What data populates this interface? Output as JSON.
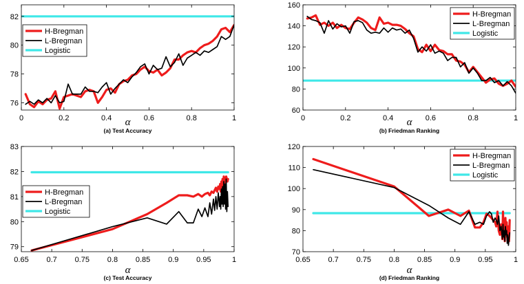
{
  "chart_data": [
    {
      "type": "line",
      "caption": "(a) Test Accuracy",
      "xlabel": "α",
      "ylabel": "",
      "xlim": [
        0,
        1
      ],
      "ylim": [
        75.5,
        82.8
      ],
      "xticks": [
        0,
        0.2,
        0.4,
        0.6,
        0.8,
        1
      ],
      "xtick_labels": [
        "0",
        "0.2",
        "0.4",
        "0.6",
        "0.8",
        "1"
      ],
      "yticks": [
        76,
        78,
        80,
        82
      ],
      "ytick_labels": [
        "76",
        "78",
        "80",
        "82"
      ],
      "legend_position": "upper-left",
      "series": [
        {
          "name": "H-Bregman",
          "color": "#ee1c1c",
          "width": 3.2,
          "x": [
            0.02,
            0.04,
            0.06,
            0.08,
            0.1,
            0.12,
            0.14,
            0.16,
            0.18,
            0.2,
            0.22,
            0.24,
            0.26,
            0.28,
            0.3,
            0.32,
            0.34,
            0.36,
            0.38,
            0.4,
            0.42,
            0.44,
            0.46,
            0.48,
            0.5,
            0.52,
            0.54,
            0.56,
            0.58,
            0.6,
            0.62,
            0.64,
            0.66,
            0.68,
            0.7,
            0.72,
            0.74,
            0.76,
            0.78,
            0.8,
            0.82,
            0.84,
            0.86,
            0.88,
            0.9,
            0.92,
            0.94,
            0.96,
            0.98,
            1.0
          ],
          "y": [
            76.6,
            75.9,
            75.7,
            76.1,
            75.9,
            76.2,
            76.3,
            76.8,
            75.6,
            76.4,
            76.5,
            76.6,
            76.5,
            76.4,
            76.8,
            76.9,
            76.8,
            76.0,
            76.4,
            76.9,
            77.0,
            76.7,
            77.3,
            77.5,
            77.6,
            77.9,
            78.0,
            78.3,
            78.5,
            78.2,
            78.1,
            78.3,
            77.9,
            78.1,
            78.4,
            79.0,
            79.0,
            79.3,
            79.5,
            79.6,
            79.5,
            79.8,
            80.0,
            80.1,
            80.3,
            80.6,
            81.1,
            81.2,
            80.9,
            81.4
          ]
        },
        {
          "name": "L-Bregman",
          "color": "#000000",
          "width": 1.7,
          "x": [
            0.02,
            0.04,
            0.06,
            0.08,
            0.1,
            0.12,
            0.14,
            0.16,
            0.18,
            0.2,
            0.22,
            0.24,
            0.26,
            0.28,
            0.3,
            0.32,
            0.34,
            0.36,
            0.38,
            0.4,
            0.42,
            0.44,
            0.46,
            0.48,
            0.5,
            0.52,
            0.54,
            0.56,
            0.58,
            0.6,
            0.62,
            0.64,
            0.66,
            0.68,
            0.7,
            0.72,
            0.74,
            0.76,
            0.78,
            0.8,
            0.82,
            0.84,
            0.86,
            0.88,
            0.9,
            0.92,
            0.94,
            0.96,
            0.98,
            1.0
          ],
          "y": [
            75.9,
            76.1,
            75.9,
            76.2,
            76.0,
            76.3,
            76.0,
            76.5,
            76.0,
            76.1,
            77.3,
            76.6,
            76.6,
            76.6,
            77.1,
            76.8,
            76.8,
            76.7,
            77.1,
            77.4,
            76.6,
            77.0,
            77.3,
            77.6,
            77.4,
            77.8,
            78.1,
            78.5,
            78.7,
            78.0,
            78.6,
            78.3,
            78.4,
            79.2,
            78.5,
            78.8,
            79.4,
            78.6,
            79.1,
            79.3,
            79.5,
            79.3,
            79.6,
            79.5,
            79.7,
            79.9,
            80.6,
            80.4,
            80.6,
            81.4
          ]
        },
        {
          "name": "Logistic",
          "color": "#3fe8e8",
          "width": 3.2,
          "x": [
            0,
            1
          ],
          "y": [
            82.0,
            82.0
          ]
        }
      ]
    },
    {
      "type": "line",
      "caption": "(b) Friedman Ranking",
      "xlabel": "α",
      "ylabel": "",
      "xlim": [
        0,
        1
      ],
      "ylim": [
        60,
        160
      ],
      "xticks": [
        0,
        0.2,
        0.4,
        0.6,
        0.8,
        1
      ],
      "xtick_labels": [
        "0",
        "0.2",
        "0.4",
        "0.6",
        "0.8",
        "1"
      ],
      "yticks": [
        60,
        80,
        100,
        120,
        140,
        160
      ],
      "ytick_labels": [
        "60",
        "80",
        "100",
        "120",
        "140",
        "160"
      ],
      "legend_position": "upper-right",
      "series": [
        {
          "name": "H-Bregman",
          "color": "#ee1c1c",
          "width": 3.2,
          "x": [
            0.02,
            0.04,
            0.06,
            0.08,
            0.1,
            0.12,
            0.14,
            0.16,
            0.18,
            0.2,
            0.22,
            0.24,
            0.26,
            0.28,
            0.3,
            0.32,
            0.34,
            0.36,
            0.38,
            0.4,
            0.42,
            0.44,
            0.46,
            0.48,
            0.5,
            0.52,
            0.54,
            0.56,
            0.58,
            0.6,
            0.62,
            0.64,
            0.66,
            0.68,
            0.7,
            0.72,
            0.74,
            0.76,
            0.78,
            0.8,
            0.82,
            0.84,
            0.86,
            0.88,
            0.9,
            0.92,
            0.94,
            0.96,
            0.98,
            1.0
          ],
          "y": [
            147,
            148,
            150,
            141,
            143,
            140,
            143,
            138,
            141,
            138,
            137,
            143,
            148,
            146,
            143,
            138,
            136,
            148,
            142,
            143,
            141,
            141,
            140,
            137,
            133,
            130,
            118,
            115,
            122,
            116,
            122,
            117,
            116,
            113,
            113,
            107,
            106,
            103,
            96,
            101,
            96,
            91,
            86,
            89,
            90,
            85,
            83,
            85,
            88,
            82
          ]
        },
        {
          "name": "L-Bregman",
          "color": "#000000",
          "width": 1.7,
          "x": [
            0.02,
            0.04,
            0.06,
            0.08,
            0.1,
            0.12,
            0.14,
            0.16,
            0.18,
            0.2,
            0.22,
            0.24,
            0.26,
            0.28,
            0.3,
            0.32,
            0.34,
            0.36,
            0.38,
            0.4,
            0.42,
            0.44,
            0.46,
            0.48,
            0.5,
            0.52,
            0.54,
            0.56,
            0.58,
            0.6,
            0.62,
            0.64,
            0.66,
            0.68,
            0.7,
            0.72,
            0.74,
            0.76,
            0.78,
            0.8,
            0.82,
            0.84,
            0.86,
            0.88,
            0.9,
            0.92,
            0.94,
            0.96,
            0.98,
            1.0
          ],
          "y": [
            149,
            146,
            145,
            143,
            133,
            145,
            137,
            142,
            139,
            140,
            133,
            144,
            145,
            143,
            136,
            133,
            134,
            133,
            138,
            134,
            138,
            136,
            137,
            133,
            136,
            128,
            115,
            120,
            116,
            122,
            114,
            116,
            114,
            107,
            110,
            110,
            101,
            105,
            95,
            100,
            95,
            88,
            88,
            91,
            86,
            88,
            83,
            87,
            83,
            76
          ]
        },
        {
          "name": "Logistic",
          "color": "#3fe8e8",
          "width": 3.2,
          "x": [
            0,
            1
          ],
          "y": [
            88,
            88
          ]
        }
      ]
    },
    {
      "type": "line",
      "caption": "(c) Test Accuracy",
      "xlabel": "α",
      "ylabel": "",
      "xlim": [
        0.65,
        1
      ],
      "ylim": [
        78.8,
        83
      ],
      "xticks": [
        0.65,
        0.7,
        0.75,
        0.8,
        0.85,
        0.9,
        0.95,
        1
      ],
      "xtick_labels": [
        "0.65",
        "0.7",
        "0.75",
        "0.8",
        "0.85",
        "0.9",
        "0.95",
        "1"
      ],
      "yticks": [
        79,
        80,
        81,
        82,
        83
      ],
      "ytick_labels": [
        "79",
        "80",
        "81",
        "82",
        "83"
      ],
      "legend_position": "center-left",
      "series": [
        {
          "name": "H-Bregman",
          "color": "#ee1c1c",
          "width": 3.2,
          "x": [
            0.667,
            0.8,
            0.857,
            0.889,
            0.909,
            0.923,
            0.933,
            0.941,
            0.947,
            0.952,
            0.957,
            0.96,
            0.963,
            0.966,
            0.968,
            0.97,
            0.972,
            0.974,
            0.976,
            0.977,
            0.978,
            0.979,
            0.98,
            0.981,
            0.982,
            0.983,
            0.984,
            0.985,
            0.986,
            0.987,
            0.988,
            0.989,
            0.99
          ],
          "y": [
            78.85,
            79.7,
            80.3,
            80.75,
            81.05,
            81.05,
            81.0,
            81.1,
            81.0,
            81.1,
            81.15,
            81.05,
            81.2,
            81.15,
            81.25,
            81.35,
            81.2,
            81.4,
            81.3,
            81.5,
            81.2,
            81.6,
            81.3,
            81.7,
            81.4,
            81.8,
            81.5,
            81.75,
            81.6,
            81.8,
            81.7,
            81.6,
            81.7
          ]
        },
        {
          "name": "L-Bregman",
          "color": "#000000",
          "width": 1.7,
          "x": [
            0.667,
            0.8,
            0.857,
            0.889,
            0.909,
            0.923,
            0.933,
            0.941,
            0.947,
            0.952,
            0.957,
            0.96,
            0.963,
            0.966,
            0.968,
            0.97,
            0.972,
            0.974,
            0.976,
            0.977,
            0.978,
            0.979,
            0.98,
            0.981,
            0.982,
            0.983,
            0.984,
            0.985,
            0.986,
            0.987,
            0.988,
            0.989,
            0.99
          ],
          "y": [
            78.85,
            79.8,
            80.15,
            79.9,
            80.4,
            79.95,
            79.95,
            80.5,
            80.2,
            80.55,
            80.2,
            80.75,
            80.3,
            80.9,
            80.45,
            81.0,
            80.5,
            81.15,
            80.6,
            81.0,
            80.5,
            81.3,
            80.7,
            81.4,
            80.6,
            81.6,
            80.7,
            81.5,
            80.5,
            81.7,
            80.4,
            81.2,
            80.6
          ]
        },
        {
          "name": "Logistic",
          "color": "#3fe8e8",
          "width": 3.2,
          "x": [
            0.667,
            0.99
          ],
          "y": [
            81.97,
            81.97
          ]
        }
      ]
    },
    {
      "type": "line",
      "caption": "(d) Friedman Ranking",
      "xlabel": "α",
      "ylabel": "",
      "xlim": [
        0.65,
        1
      ],
      "ylim": [
        70,
        120
      ],
      "xticks": [
        0.65,
        0.7,
        0.75,
        0.8,
        0.85,
        0.9,
        0.95,
        1
      ],
      "xtick_labels": [
        "0.65",
        "0.7",
        "0.75",
        "0.8",
        "0.85",
        "0.9",
        "0.95",
        "1"
      ],
      "yticks": [
        70,
        80,
        90,
        100,
        110,
        120
      ],
      "ytick_labels": [
        "70",
        "80",
        "90",
        "100",
        "110",
        "120"
      ],
      "legend_position": "upper-right",
      "series": [
        {
          "name": "H-Bregman",
          "color": "#ee1c1c",
          "width": 3.2,
          "x": [
            0.667,
            0.8,
            0.857,
            0.889,
            0.909,
            0.923,
            0.933,
            0.941,
            0.947,
            0.952,
            0.957,
            0.96,
            0.963,
            0.966,
            0.968,
            0.97,
            0.972,
            0.974,
            0.976,
            0.977,
            0.978,
            0.979,
            0.98,
            0.981,
            0.982,
            0.983,
            0.984,
            0.985,
            0.986,
            0.987,
            0.988,
            0.989,
            0.99
          ],
          "y": [
            114,
            101,
            87,
            90,
            87,
            89.5,
            81.5,
            81.5,
            84,
            88,
            87,
            86,
            85,
            84,
            82,
            89,
            80,
            78,
            83,
            80,
            76,
            89,
            78,
            82,
            75,
            86,
            79,
            84,
            77,
            80,
            82,
            75,
            85
          ]
        },
        {
          "name": "L-Bregman",
          "color": "#000000",
          "width": 1.7,
          "x": [
            0.667,
            0.8,
            0.857,
            0.889,
            0.909,
            0.923,
            0.933,
            0.941,
            0.947,
            0.952,
            0.957,
            0.96,
            0.963,
            0.966,
            0.968,
            0.97,
            0.972,
            0.974,
            0.976,
            0.977,
            0.978,
            0.979,
            0.98,
            0.981,
            0.982,
            0.983,
            0.984,
            0.985,
            0.986,
            0.987,
            0.988,
            0.989,
            0.99
          ],
          "y": [
            109,
            100.5,
            92,
            86,
            83,
            89,
            83,
            84,
            83,
            87,
            89,
            88,
            84,
            86,
            85,
            83,
            87,
            80,
            82,
            79,
            76,
            83,
            77,
            80,
            75,
            82,
            78,
            80,
            74,
            78,
            73,
            76,
            79
          ]
        },
        {
          "name": "Logistic",
          "color": "#3fe8e8",
          "width": 3.2,
          "x": [
            0.667,
            0.99
          ],
          "y": [
            88.3,
            88.3
          ]
        }
      ]
    }
  ]
}
